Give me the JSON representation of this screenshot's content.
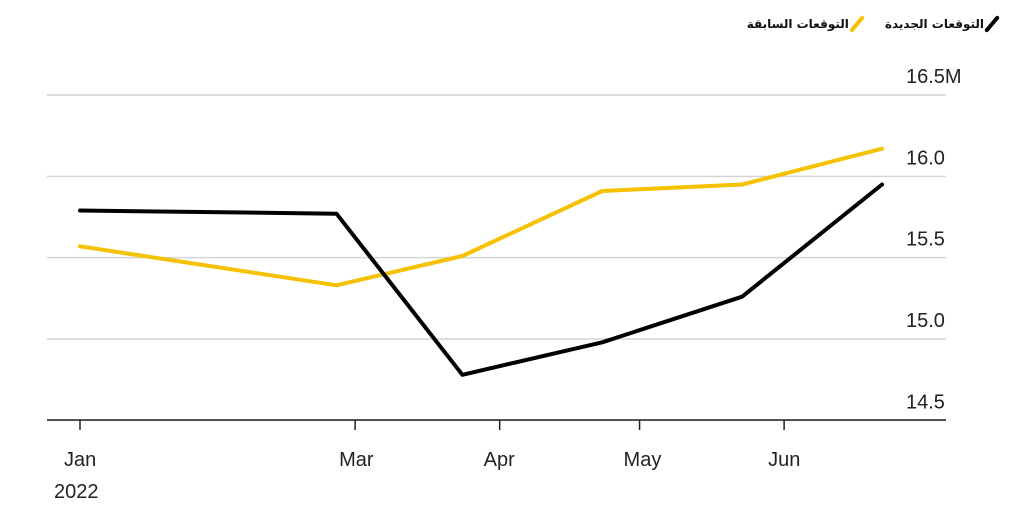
{
  "chart_data": {
    "type": "line",
    "x": [
      "2022-01-01",
      "2022-02-25",
      "2022-03-24",
      "2022-04-23",
      "2022-05-23",
      "2022-06-22"
    ],
    "x_ticks": [
      {
        "date": "2022-01-01",
        "label": "Jan",
        "sublabel": "2022"
      },
      {
        "date": "2022-03-01",
        "label": "Mar"
      },
      {
        "date": "2022-04-01",
        "label": "Apr"
      },
      {
        "date": "2022-05-01",
        "label": "May"
      },
      {
        "date": "2022-06-01",
        "label": "Jun"
      }
    ],
    "y_ticks": [
      {
        "value": 16.5,
        "label": "16.5M"
      },
      {
        "value": 16.0,
        "label": "16.0"
      },
      {
        "value": 15.5,
        "label": "15.5"
      },
      {
        "value": 15.0,
        "label": "15.0"
      },
      {
        "value": 14.5,
        "label": "14.5"
      }
    ],
    "ylim": [
      14.4,
      16.75
    ],
    "grid": true,
    "legend_position": "top-right",
    "series": [
      {
        "name": "التوقعات الجديدة",
        "color": "#000000",
        "values": [
          15.79,
          15.77,
          14.78,
          14.98,
          15.26,
          15.95
        ]
      },
      {
        "name": "التوقعات السابقة",
        "color": "#F5C100",
        "values": [
          15.57,
          15.33,
          15.51,
          15.91,
          15.95,
          16.17
        ]
      }
    ]
  }
}
